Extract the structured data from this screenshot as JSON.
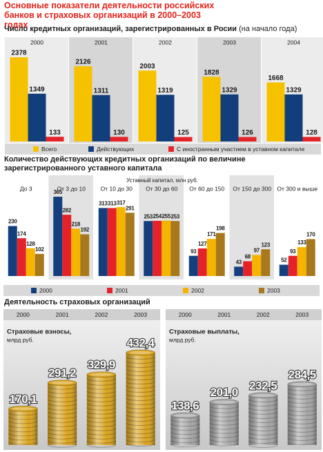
{
  "title": "Основные показатели деятельности российских банков и страховых организаций в 2000–2003 годах",
  "section_title": "Деятельность страховых организаций",
  "chart_data": [
    {
      "type": "bar",
      "title": "Число кредитных организаций, зарегистрированных в Росии",
      "subtitle": "(на начало года)",
      "categories": [
        "2000",
        "2001",
        "2002",
        "2003",
        "2004"
      ],
      "series": [
        {
          "name": "Всего",
          "color": "#f6c200",
          "values": [
            2378,
            2126,
            2003,
            1828,
            1668
          ]
        },
        {
          "name": "Действующих",
          "color": "#123e7c",
          "values": [
            1349,
            1311,
            1319,
            1329,
            1329
          ]
        },
        {
          "name": "С иностранным участием в уставном капитале",
          "color": "#e42429",
          "values": [
            133,
            130,
            125,
            126,
            128
          ]
        }
      ]
    },
    {
      "type": "bar",
      "title": "Количество действующих кредитных организаций по величине зарегистрированного уставного капитала",
      "subtitle": "Уставный капитал, млн руб.",
      "categories": [
        "До 3",
        "От 3 до 10",
        "От 10 до 30",
        "От 30 до 60",
        "От 60 до 150",
        "От 150 до 300",
        "От 300 и выше"
      ],
      "series": [
        {
          "name": "2000",
          "color": "#143f7e",
          "values": [
            230,
            365,
            313,
            253,
            93,
            43,
            52
          ]
        },
        {
          "name": "2001",
          "color": "#e5222a",
          "values": [
            174,
            282,
            313,
            254,
            127,
            68,
            93
          ]
        },
        {
          "name": "2002",
          "color": "#f5b400",
          "values": [
            128,
            218,
            317,
            255,
            171,
            97,
            133
          ]
        },
        {
          "name": "2003",
          "color": "#a8781c",
          "values": [
            102,
            192,
            291,
            253,
            198,
            123,
            170
          ]
        }
      ]
    },
    {
      "type": "pictogram",
      "title": "Страховые взносы,",
      "unit": "млрд руб.",
      "categories": [
        "2000",
        "2001",
        "2002",
        "2003"
      ],
      "values": [
        170.1,
        291.2,
        329.9,
        432.4
      ],
      "value_labels": [
        "170,1",
        "291,2",
        "329,9",
        "432,4"
      ],
      "color": "#d9a31c"
    },
    {
      "type": "pictogram",
      "title": "Страховые выплаты,",
      "unit": "млрд руб.",
      "categories": [
        "2000",
        "2001",
        "2002",
        "2003"
      ],
      "values": [
        138.6,
        201.0,
        232.5,
        284.5
      ],
      "value_labels": [
        "138,6",
        "201,0",
        "232,5",
        "284,5"
      ],
      "color": "#a4a4a4"
    }
  ]
}
